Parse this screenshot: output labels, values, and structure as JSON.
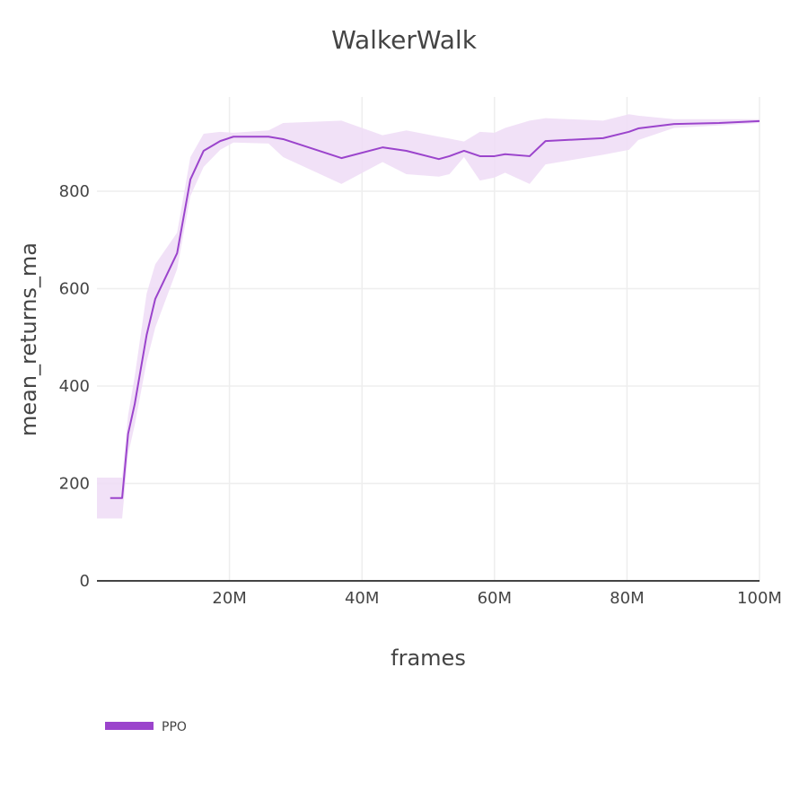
{
  "chart_data": {
    "type": "line",
    "title": "WalkerWalk",
    "xlabel": "frames",
    "ylabel": "mean_returns_ma",
    "xlim": [
      0,
      100000000
    ],
    "ylim": [
      0,
      990
    ],
    "x_ticks": [
      {
        "value": 20000000,
        "label": "20M"
      },
      {
        "value": 40000000,
        "label": "40M"
      },
      {
        "value": 60000000,
        "label": "60M"
      },
      {
        "value": 80000000,
        "label": "80M"
      },
      {
        "value": 100000000,
        "label": "100M"
      }
    ],
    "y_ticks": [
      {
        "value": 0,
        "label": "0"
      },
      {
        "value": 200,
        "label": "200"
      },
      {
        "value": 400,
        "label": "400"
      },
      {
        "value": 600,
        "label": "600"
      },
      {
        "value": 800,
        "label": "800"
      }
    ],
    "grid": true,
    "legend_position": "bottom-left",
    "series": [
      {
        "name": "PPO",
        "color": "#9b44cc",
        "band_color": "#eedcf6",
        "x": [
          0,
          3.8,
          4.7,
          5.7,
          7.5,
          8.8,
          12.1,
          14.1,
          16.1,
          18.6,
          20.6,
          25.9,
          28.1,
          36.9,
          43.1,
          46.7,
          51.6,
          53.2,
          55.4,
          57.8,
          60.0,
          61.6,
          65.3,
          67.7,
          76.4,
          80.3,
          81.7,
          87.1,
          93.9,
          100
        ],
        "x_line_start": 2.0,
        "values": [
          170,
          170,
          302,
          363,
          505,
          579,
          673,
          824,
          883,
          903,
          912,
          912,
          907,
          868,
          890,
          883,
          866,
          872,
          883,
          872,
          872,
          876,
          872,
          903,
          909,
          922,
          929,
          938,
          940,
          944
        ],
        "upper": [
          212,
          212,
          340,
          420,
          590,
          650,
          715,
          870,
          918,
          922,
          920,
          925,
          940,
          945,
          915,
          925,
          912,
          908,
          902,
          922,
          920,
          930,
          945,
          950,
          945,
          958,
          955,
          948,
          948,
          948
        ],
        "lower": [
          128,
          128,
          260,
          320,
          450,
          520,
          640,
          790,
          850,
          885,
          900,
          898,
          870,
          815,
          860,
          835,
          830,
          835,
          870,
          822,
          828,
          838,
          815,
          855,
          875,
          885,
          905,
          930,
          935,
          940
        ]
      }
    ]
  },
  "legend": {
    "items": [
      {
        "label": "PPO",
        "color": "#9b44cc"
      }
    ]
  }
}
